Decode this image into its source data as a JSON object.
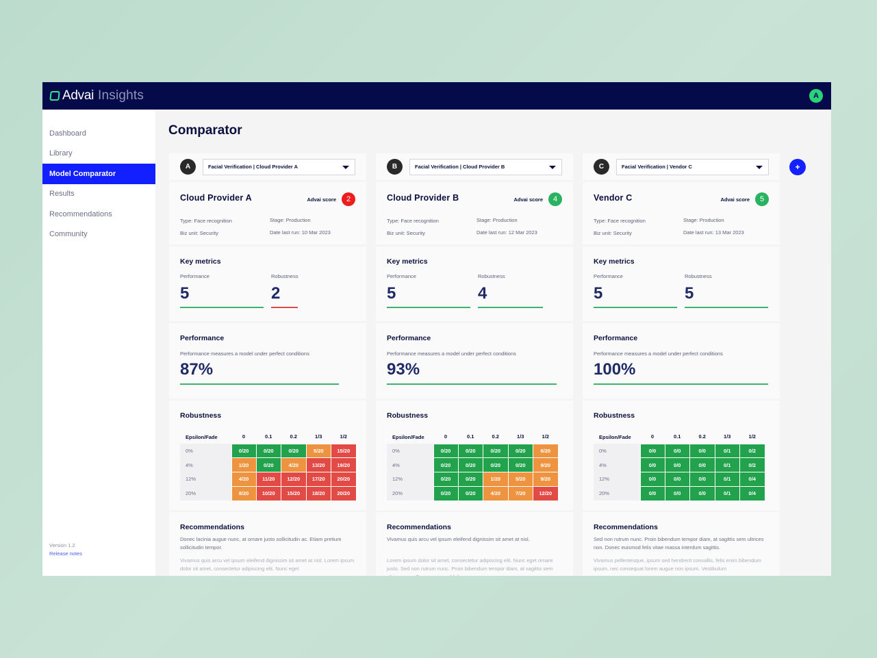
{
  "header": {
    "brand": "Advai",
    "product": "Insights",
    "user_initial": "A"
  },
  "sidebar": {
    "items": [
      {
        "label": "Dashboard",
        "active": false
      },
      {
        "label": "Library",
        "active": false
      },
      {
        "label": "Model Comparator",
        "active": true
      },
      {
        "label": "Results",
        "active": false
      },
      {
        "label": "Recommendations",
        "active": false
      },
      {
        "label": "Community",
        "active": false
      }
    ],
    "version": "Version 1.2",
    "release_notes": "Release notes"
  },
  "page": {
    "title": "Comparator",
    "add_label": "+"
  },
  "labels": {
    "advai_score": "Advai score",
    "key_metrics": "Key metrics",
    "performance": "Performance",
    "robustness": "Robustness",
    "performance_desc": "Performance measures a model under perfect conditions",
    "recommendations": "Recommendations",
    "epsilon_header": "Epsilon/Fade"
  },
  "robustness_columns": [
    "0",
    "0.1",
    "0.2",
    "1/3",
    "1/2"
  ],
  "robustness_rows": [
    "0%",
    "4%",
    "12%",
    "20%"
  ],
  "status_colors": {
    "good": "#23a24d",
    "warning": "#ee9440",
    "bad": "#e14a45",
    "score_bad": "#ee1c1c",
    "score_good": "#29b360"
  },
  "columns": [
    {
      "letter": "A",
      "selector": "Facial Verification | Cloud Provider A",
      "name": "Cloud Provider A",
      "score": "2",
      "score_status": "bad",
      "type": "Type: Face recognition",
      "stage": "Stage: Production",
      "biz_unit": "Biz unit: Security",
      "date": "Date last run: 10 Mar 2023",
      "performance_metric": "5",
      "performance_status": "good",
      "robustness_metric": "2",
      "robustness_status": "bad",
      "performance_pct": "87%",
      "robustness": [
        [
          {
            "v": "0/20",
            "s": "g"
          },
          {
            "v": "0/20",
            "s": "g"
          },
          {
            "v": "0/20",
            "s": "g"
          },
          {
            "v": "5/20",
            "s": "o"
          },
          {
            "v": "15/20",
            "s": "r"
          }
        ],
        [
          {
            "v": "1/20",
            "s": "o"
          },
          {
            "v": "0/20",
            "s": "g"
          },
          {
            "v": "4/20",
            "s": "o"
          },
          {
            "v": "13/20",
            "s": "r"
          },
          {
            "v": "19/20",
            "s": "r"
          }
        ],
        [
          {
            "v": "4/20",
            "s": "o"
          },
          {
            "v": "11/20",
            "s": "r"
          },
          {
            "v": "12/20",
            "s": "r"
          },
          {
            "v": "17/20",
            "s": "r"
          },
          {
            "v": "20/20",
            "s": "r"
          }
        ],
        [
          {
            "v": "8/20",
            "s": "o"
          },
          {
            "v": "10/20",
            "s": "r"
          },
          {
            "v": "15/20",
            "s": "r"
          },
          {
            "v": "18/20",
            "s": "r"
          },
          {
            "v": "20/20",
            "s": "r"
          }
        ]
      ],
      "rec_1": "Donec lacinia augue nunc, at ornare justo sollicitudin ac. Etiam pretium sollicitudin tempor.",
      "rec_2": "Vivamus quis arcu vel ipsum eleifend dignissim sit amet at nisl. Lorem ipsum dolor sit amet, consectetur adipiscing elit. Nunc eget"
    },
    {
      "letter": "B",
      "selector": "Facial Verification | Cloud Provider B",
      "name": "Cloud Provider B",
      "score": "4",
      "score_status": "good",
      "type": "Type: Face recognition",
      "stage": "Stage: Production",
      "biz_unit": "Biz unit: Security",
      "date": "Date last run: 12 Mar 2023",
      "performance_metric": "5",
      "performance_status": "good",
      "robustness_metric": "4",
      "robustness_status": "good",
      "performance_pct": "93%",
      "robustness": [
        [
          {
            "v": "0/20",
            "s": "g"
          },
          {
            "v": "0/20",
            "s": "g"
          },
          {
            "v": "0/20",
            "s": "g"
          },
          {
            "v": "0/20",
            "s": "g"
          },
          {
            "v": "6/20",
            "s": "o"
          }
        ],
        [
          {
            "v": "0/20",
            "s": "g"
          },
          {
            "v": "0/20",
            "s": "g"
          },
          {
            "v": "0/20",
            "s": "g"
          },
          {
            "v": "0/20",
            "s": "g"
          },
          {
            "v": "9/20",
            "s": "o"
          }
        ],
        [
          {
            "v": "0/20",
            "s": "g"
          },
          {
            "v": "0/20",
            "s": "g"
          },
          {
            "v": "1/20",
            "s": "o"
          },
          {
            "v": "5/20",
            "s": "o"
          },
          {
            "v": "9/20",
            "s": "o"
          }
        ],
        [
          {
            "v": "0/20",
            "s": "g"
          },
          {
            "v": "0/20",
            "s": "g"
          },
          {
            "v": "4/20",
            "s": "o"
          },
          {
            "v": "7/20",
            "s": "o"
          },
          {
            "v": "12/20",
            "s": "r"
          }
        ]
      ],
      "rec_1": "Vivamus quis arcu vel ipsum eleifend dignissim sit amet at nisl.",
      "rec_2": "Lorem ipsum dolor sit amet, consectetur adipiscing elit. Nunc eget ornare justo. Sed non rutrum nunc. Proin bibendum tempor diam, at sagittis sem ultrices non. Donec euismod felis"
    },
    {
      "letter": "C",
      "selector": "Facial Verification | Vendor C",
      "name": "Vendor C",
      "score": "5",
      "score_status": "good",
      "type": "Type: Face recognition",
      "stage": "Stage: Production",
      "biz_unit": "Biz unit: Security",
      "date": "Date last run: 13 Mar 2023",
      "performance_metric": "5",
      "performance_status": "good",
      "robustness_metric": "5",
      "robustness_status": "good",
      "performance_pct": "100%",
      "robustness": [
        [
          {
            "v": "0/0",
            "s": "g"
          },
          {
            "v": "0/0",
            "s": "g"
          },
          {
            "v": "0/0",
            "s": "g"
          },
          {
            "v": "0/1",
            "s": "g"
          },
          {
            "v": "0/2",
            "s": "g"
          }
        ],
        [
          {
            "v": "0/0",
            "s": "g"
          },
          {
            "v": "0/0",
            "s": "g"
          },
          {
            "v": "0/0",
            "s": "g"
          },
          {
            "v": "0/1",
            "s": "g"
          },
          {
            "v": "0/2",
            "s": "g"
          }
        ],
        [
          {
            "v": "0/0",
            "s": "g"
          },
          {
            "v": "0/0",
            "s": "g"
          },
          {
            "v": "0/0",
            "s": "g"
          },
          {
            "v": "0/1",
            "s": "g"
          },
          {
            "v": "0/4",
            "s": "g"
          }
        ],
        [
          {
            "v": "0/0",
            "s": "g"
          },
          {
            "v": "0/0",
            "s": "g"
          },
          {
            "v": "0/0",
            "s": "g"
          },
          {
            "v": "0/1",
            "s": "g"
          },
          {
            "v": "0/4",
            "s": "g"
          }
        ]
      ],
      "rec_1": "Sed non rutrum nunc. Proin bibendum tempor diam, at sagittis sem ultrices non. Donec euismod felis vitae massa interdum sagittis.",
      "rec_2": "Vivamus pellentesque, ipsum sed hendrerit convallis, felis enim bibendum ipsum, nec consequat lorem augue non ipsum. Vestibulum"
    }
  ]
}
